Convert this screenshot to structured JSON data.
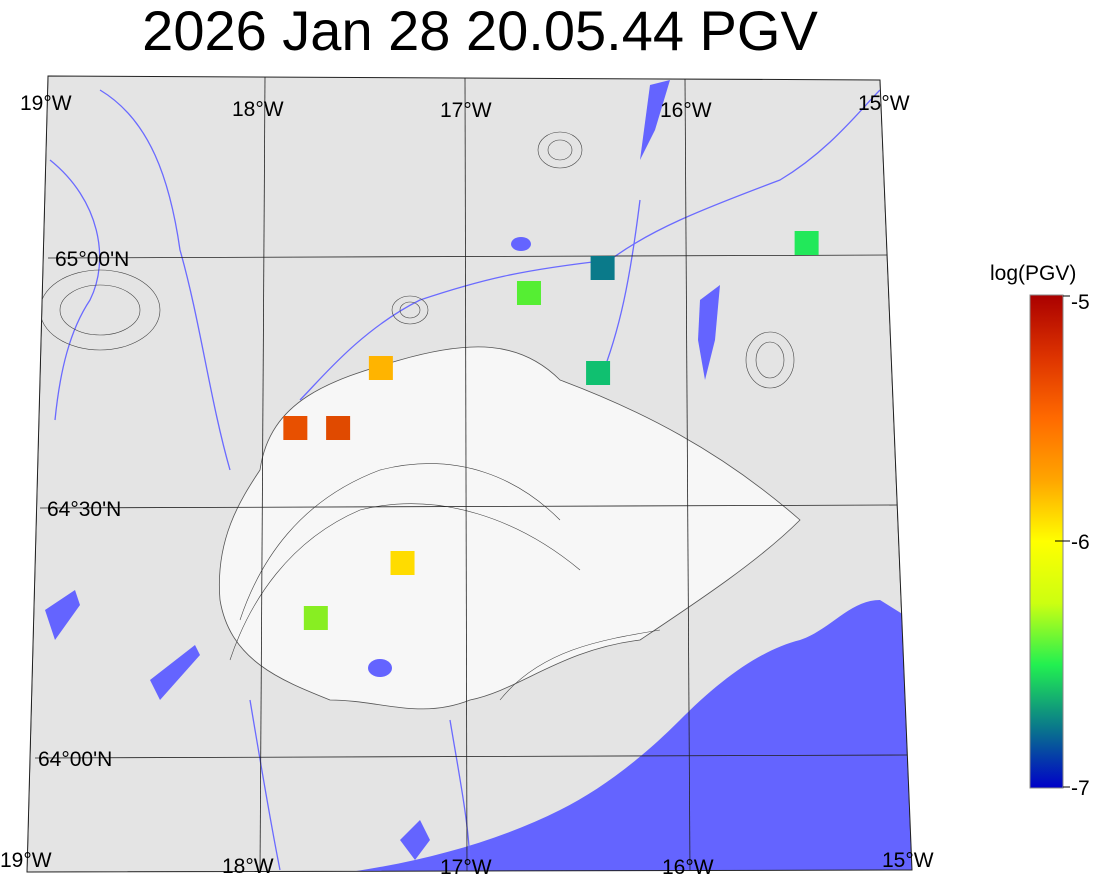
{
  "title": "2026 Jan 28 20.05.44 PGV",
  "map": {
    "lon_labels_top": [
      "19°W",
      "18°W",
      "17°W",
      "16°W",
      "15°W"
    ],
    "lon_labels_bottom": [
      "19°W",
      "18°W",
      "17°W",
      "16°W",
      "15°W"
    ],
    "lat_labels": [
      "65°00'N",
      "64°30'N",
      "64°00'N"
    ],
    "colors": {
      "land": "#e6e6e6",
      "ice": "#f6f6f6",
      "water": "#6464ff",
      "contour": "#333333",
      "grid": "#222222"
    },
    "stations": [
      {
        "lon": -15.38,
        "lat": 65.03,
        "log_pgv": -6.55,
        "color": "#22e85a"
      },
      {
        "lon": -16.35,
        "lat": 64.98,
        "log_pgv": -6.85,
        "color": "#0a7a8a"
      },
      {
        "lon": -16.7,
        "lat": 64.93,
        "log_pgv": -6.4,
        "color": "#55ee33"
      },
      {
        "lon": -17.4,
        "lat": 64.78,
        "log_pgv": -5.6,
        "color": "#ffb400"
      },
      {
        "lon": -16.38,
        "lat": 64.77,
        "log_pgv": -6.7,
        "color": "#10c070"
      },
      {
        "lon": -17.8,
        "lat": 64.66,
        "log_pgv": -5.3,
        "color": "#e85000"
      },
      {
        "lon": -17.6,
        "lat": 64.66,
        "log_pgv": -5.3,
        "color": "#e04a00"
      },
      {
        "lon": -17.3,
        "lat": 64.39,
        "log_pgv": -5.9,
        "color": "#ffdc00"
      },
      {
        "lon": -17.7,
        "lat": 64.28,
        "log_pgv": -6.25,
        "color": "#88ee22"
      }
    ]
  },
  "colorbar": {
    "label": "log(PGV)",
    "ticks": [
      "-5",
      "-6",
      "-7"
    ],
    "range": [
      -7,
      -5
    ],
    "stops": [
      "#0000c8",
      "#0a7a8a",
      "#22f050",
      "#ccff11",
      "#ffff00",
      "#ffa500",
      "#ff6a00",
      "#dd3300",
      "#aa0000"
    ]
  }
}
